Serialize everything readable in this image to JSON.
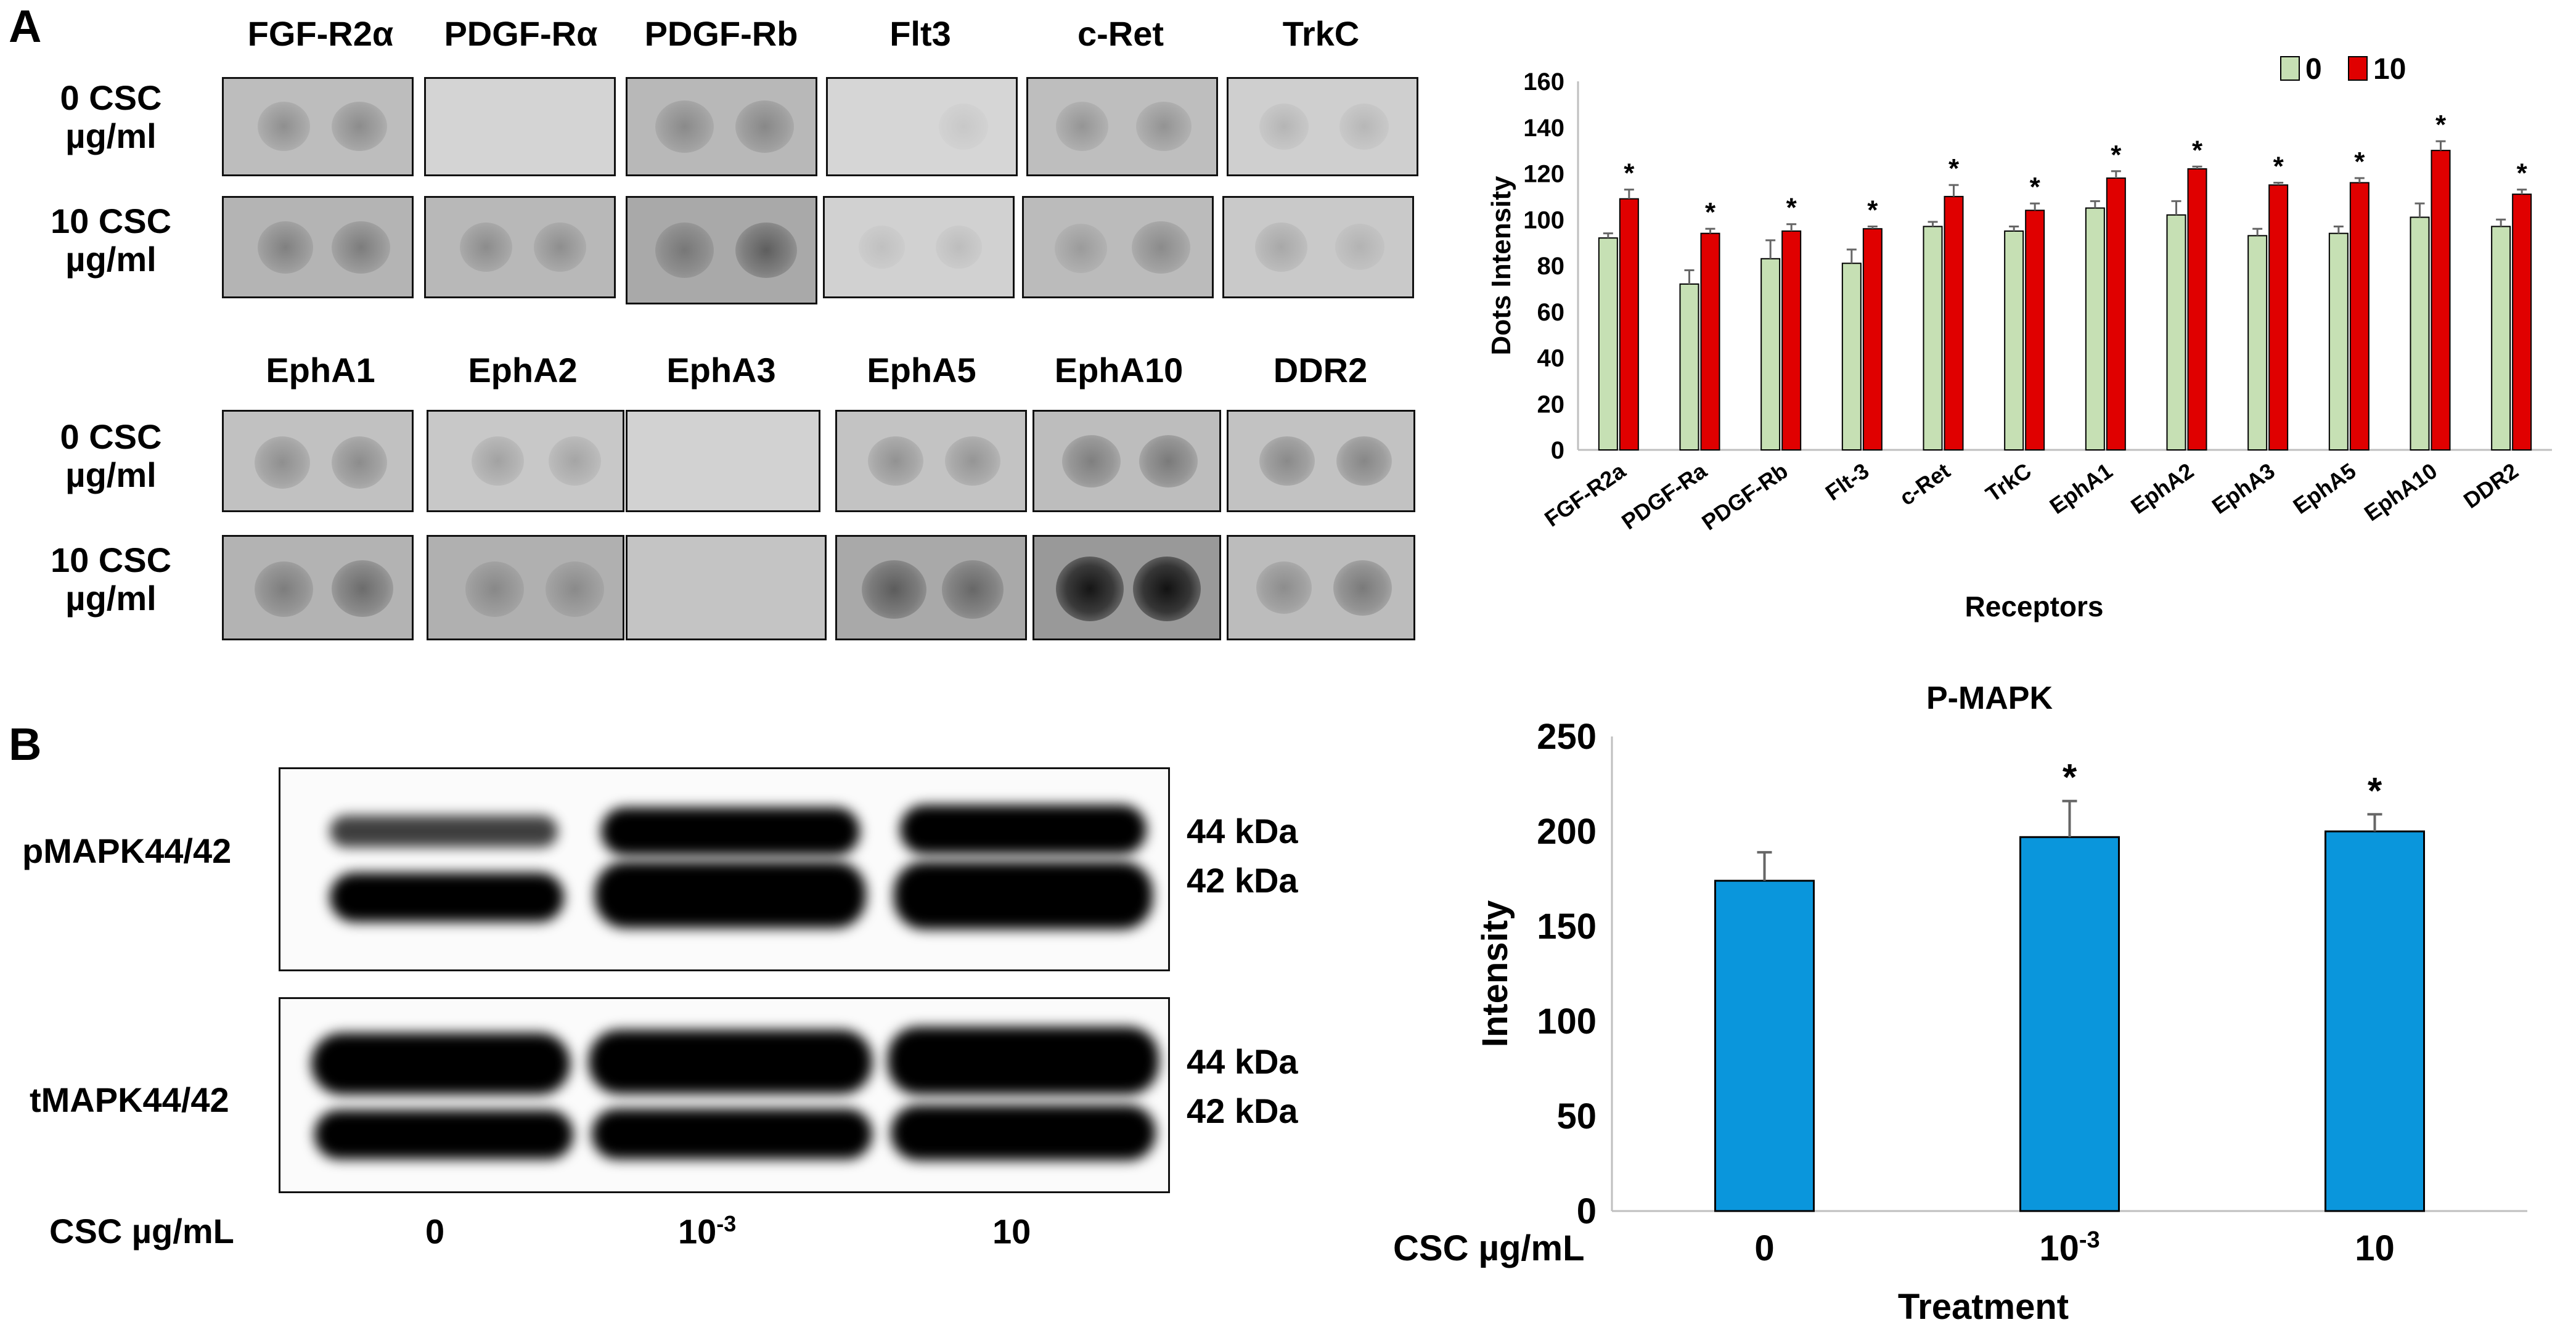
{
  "panels": {
    "a": {
      "letter": "A",
      "row1_antibodies": [
        "FGF-R2α",
        "PDGF-Rα",
        "PDGF-Rb",
        "Flt3",
        "c-Ret",
        "TrkC"
      ],
      "row2_antibodies": [
        "EphA1",
        "EphA2",
        "EphA3",
        "EphA5",
        "EphA10",
        "DDR2"
      ],
      "row_labels": [
        {
          "line1": "0 CSC",
          "line2": "µg/ml"
        },
        {
          "line1": "10 CSC",
          "line2": "µg/ml"
        }
      ]
    },
    "b": {
      "letter": "B",
      "blots": [
        {
          "name": "pMAPK44/42",
          "kda_top": "44 kDa",
          "kda_bottom": "42 kDa"
        },
        {
          "name": "tMAPK44/42",
          "kda_top": "44 kDa",
          "kda_bottom": "42 kDa"
        }
      ],
      "treatment_label": "CSC µg/mL",
      "lanes": [
        {
          "base": "0",
          "exp": ""
        },
        {
          "base": "10",
          "exp": "-3"
        },
        {
          "base": "10",
          "exp": ""
        }
      ]
    }
  },
  "colors": {
    "series_0": "#c6e0b4",
    "series_10": "#e00000",
    "pmapk_bar": "#0a96dc",
    "error_bar": "#666666",
    "axis": "#bfbfbf"
  },
  "chart_data": [
    {
      "type": "bar",
      "title": "",
      "xlabel": "Receptors",
      "ylabel": "Dots Intensity",
      "ylim": [
        0,
        160
      ],
      "yticks": [
        0,
        20,
        40,
        60,
        80,
        100,
        120,
        140,
        160
      ],
      "legend_position": "top-right",
      "categories": [
        "FGF-R2a",
        "PDGF-Ra",
        "PDGF-Rb",
        "Flt-3",
        "c-Ret",
        "TrkC",
        "EphA1",
        "EphA2",
        "EphA3",
        "EphA5",
        "EphA10",
        "DDR2"
      ],
      "series": [
        {
          "name": "0",
          "values": [
            92,
            72,
            83,
            81,
            97,
            95,
            105,
            102,
            93,
            94,
            101,
            97
          ],
          "errors": [
            2,
            6,
            8,
            6,
            2,
            2,
            3,
            6,
            3,
            3,
            6,
            3
          ]
        },
        {
          "name": "10",
          "values": [
            109,
            94,
            95,
            96,
            110,
            104,
            118,
            122,
            115,
            116,
            130,
            111
          ],
          "errors": [
            4,
            2,
            3,
            1,
            5,
            3,
            3,
            1,
            1,
            2,
            4,
            2
          ]
        }
      ],
      "annotations": [
        "*",
        "*",
        "*",
        "*",
        "*",
        "*",
        "*",
        "*",
        "*",
        "*",
        "*",
        "*"
      ]
    },
    {
      "type": "bar",
      "title": "P-MAPK",
      "xlabel": "Treatment",
      "ylabel": "Intensity",
      "ylim": [
        0,
        250
      ],
      "yticks": [
        0,
        50,
        100,
        150,
        200,
        250
      ],
      "treatment_label": "CSC µg/mL",
      "categories": [
        {
          "base": "0",
          "exp": ""
        },
        {
          "base": "10",
          "exp": "-3"
        },
        {
          "base": "10",
          "exp": ""
        }
      ],
      "values": [
        174,
        197,
        200
      ],
      "errors": [
        15,
        19,
        9
      ],
      "annotations": [
        "",
        "*",
        "*"
      ]
    }
  ]
}
